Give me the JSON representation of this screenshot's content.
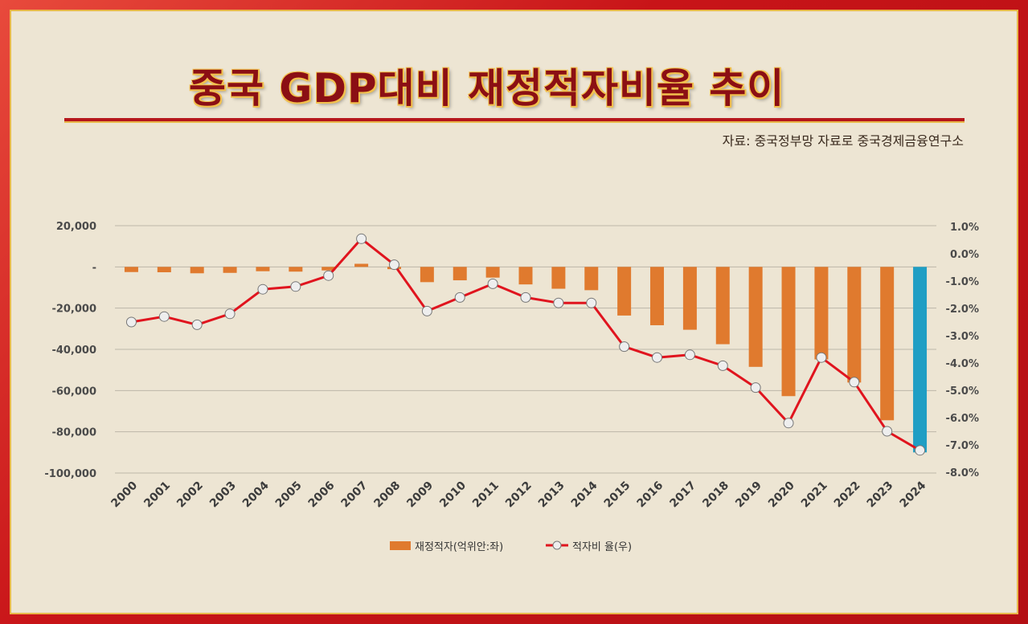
{
  "header": {
    "title": "중국 GDP대비 재정적자비율 추이",
    "source": "자료: 중국정부망 자료로 중국경제금융연구소"
  },
  "colors": {
    "bar": "#e07a2e",
    "bar_highlight": "#1f9ec4",
    "line": "#e0141e",
    "marker_fill": "#eeeeee",
    "grid": "#bdb6a8"
  },
  "chart_data": {
    "type": "bar+line",
    "categories": [
      "2000",
      "2001",
      "2002",
      "2003",
      "2004",
      "2005",
      "2006",
      "2007",
      "2008",
      "2009",
      "2010",
      "2011",
      "2012",
      "2013",
      "2014",
      "2015",
      "2016",
      "2017",
      "2018",
      "2019",
      "2020",
      "2021",
      "2022",
      "2023",
      "2024"
    ],
    "series": [
      {
        "name": "재정적자(억위안:좌)",
        "type": "bar",
        "axis": "left",
        "values": [
          -2500,
          -2600,
          -3100,
          -2900,
          -2100,
          -2300,
          -1700,
          1500,
          -1100,
          -7400,
          -6500,
          -5200,
          -8500,
          -10600,
          -11300,
          -23600,
          -28300,
          -30500,
          -37500,
          -48500,
          -62700,
          -44900,
          -56100,
          -74400,
          -90000
        ]
      },
      {
        "name": "적자비 율(우)",
        "type": "line",
        "axis": "right",
        "values": [
          -2.5,
          -2.3,
          -2.6,
          -2.2,
          -1.3,
          -1.2,
          -0.8,
          0.55,
          -0.4,
          -2.1,
          -1.6,
          -1.1,
          -1.6,
          -1.8,
          -1.8,
          -3.4,
          -3.8,
          -3.7,
          -4.1,
          -4.9,
          -6.2,
          -3.8,
          -4.7,
          -6.5,
          -7.2
        ]
      }
    ],
    "left_axis": {
      "ticks": [
        "20,000",
        "-",
        "-20,000",
        "-40,000",
        "-60,000",
        "-80,000",
        "-100,000"
      ],
      "tick_values": [
        20000,
        0,
        -20000,
        -40000,
        -60000,
        -80000,
        -100000
      ],
      "range": [
        -100000,
        20000
      ]
    },
    "right_axis": {
      "ticks": [
        "1.0%",
        "0.0%",
        "-1.0%",
        "-2.0%",
        "-3.0%",
        "-4.0%",
        "-5.0%",
        "-6.0%",
        "-7.0%",
        "-8.0%"
      ],
      "tick_values": [
        1,
        0,
        -1,
        -2,
        -3,
        -4,
        -5,
        -6,
        -7,
        -8
      ],
      "range": [
        -8,
        1
      ]
    },
    "highlight_category": "2024",
    "grid": true,
    "legend_position": "bottom"
  }
}
